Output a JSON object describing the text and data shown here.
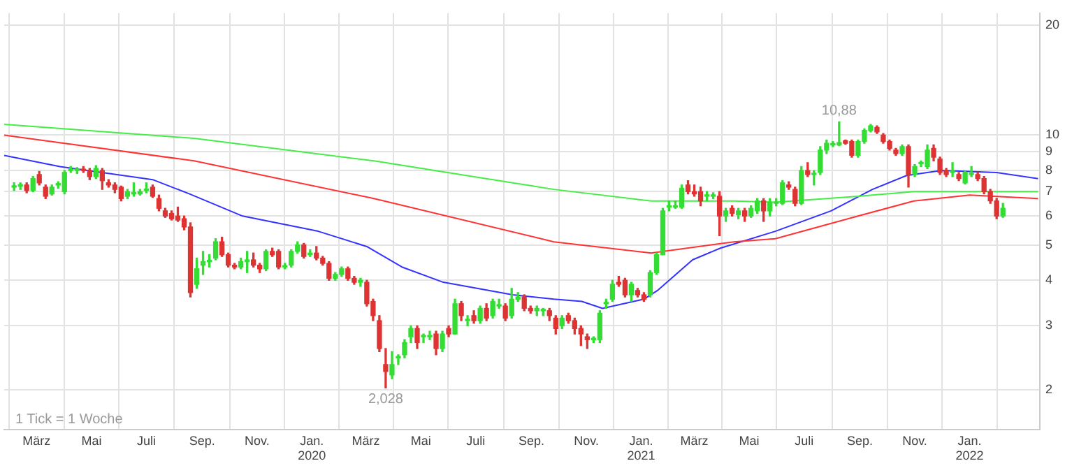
{
  "chart_data": {
    "type": "candlestick",
    "log": "y",
    "grid": true,
    "legend": false,
    "xlim": [
      "2019-01-24",
      "2022-03-20"
    ],
    "xticks": [
      {
        "value": "2019-03-01",
        "label": "März"
      },
      {
        "value": "2019-05-01",
        "label": "Mai"
      },
      {
        "value": "2019-07-01",
        "label": "Juli"
      },
      {
        "value": "2019-09-01",
        "label": "Sep."
      },
      {
        "value": "2019-11-01",
        "label": "Nov."
      },
      {
        "value": "2020-01-01",
        "label": "Jan.\n2020"
      },
      {
        "value": "2020-03-01",
        "label": "März"
      },
      {
        "value": "2020-05-01",
        "label": "Mai"
      },
      {
        "value": "2020-07-01",
        "label": "Juli"
      },
      {
        "value": "2020-09-01",
        "label": "Sep."
      },
      {
        "value": "2020-11-01",
        "label": "Nov."
      },
      {
        "value": "2021-01-01",
        "label": "Jan.\n2021"
      },
      {
        "value": "2021-03-01",
        "label": "März"
      },
      {
        "value": "2021-05-01",
        "label": "Mai"
      },
      {
        "value": "2021-07-01",
        "label": "Juli"
      },
      {
        "value": "2021-09-01",
        "label": "Sep."
      },
      {
        "value": "2021-11-01",
        "label": "Nov."
      },
      {
        "value": "2022-01-01",
        "label": "Jan.\n2022"
      }
    ],
    "ylim": [
      1.56,
      21.6
    ],
    "yticks": [
      2,
      3,
      4,
      5,
      6,
      7,
      8,
      9,
      10,
      20
    ],
    "colors": [
      "#33dd33",
      "#33dd33",
      "#dd3333",
      "#33dd33",
      "#dd3333",
      "#dd3333",
      "#33dd33",
      "#33dd33",
      "#33dd33",
      "#33dd33",
      "#33dd33",
      "#dd3333",
      "#dd3333",
      "#33dd33",
      "#dd3333",
      "#dd3333",
      "#dd3333",
      "#dd3333",
      "#33dd33",
      "#33dd33",
      "#33dd33",
      "#33dd33",
      "#dd3333",
      "#dd3333",
      "#dd3333",
      "#dd3333",
      "#dd3333",
      "#dd3333",
      "#dd3333",
      "#33dd33",
      "#33dd33",
      "#33dd33",
      "#33dd33",
      "#dd3333",
      "#dd3333",
      "#dd3333",
      "#33dd33",
      "#33dd33",
      "#dd3333",
      "#dd3333",
      "#33dd33",
      "#dd3333",
      "#dd3333",
      "#33dd33",
      "#33dd33",
      "#33dd33",
      "#dd3333",
      "#33dd33",
      "#dd3333",
      "#dd3333",
      "#dd3333",
      "#33dd33",
      "#33dd33",
      "#dd3333",
      "#dd3333",
      "#33dd33",
      "#dd3333",
      "#dd3333",
      "#dd3333",
      "#dd3333",
      "#33dd33",
      "#33dd33",
      "#33dd33",
      "#33dd33",
      "#dd3333",
      "#33dd33",
      "#33dd33",
      "#dd3333",
      "#33dd33",
      "#dd3333",
      "#33dd33",
      "#dd3333",
      "#33dd33",
      "#dd3333",
      "#33dd33",
      "#dd3333",
      "#33dd33",
      "#33dd33",
      "#dd3333",
      "#33dd33",
      "#33dd33",
      "#dd3333",
      "#dd3333",
      "#33dd33",
      "#33dd33",
      "#dd3333",
      "#dd3333",
      "#33dd33",
      "#dd3333",
      "#dd3333",
      "#dd3333",
      "#dd3333",
      "#33dd33",
      "#33dd33",
      "#33dd33",
      "#33dd33",
      "#dd3333",
      "#dd3333",
      "#33dd33",
      "#dd3333",
      "#dd3333",
      "#33dd33",
      "#33dd33",
      "#33dd33",
      "#33dd33",
      "#33dd33",
      "#33dd33",
      "#dd3333",
      "#dd3333",
      "#dd3333",
      "#33dd33",
      "#33dd33",
      "#dd3333",
      "#33dd33",
      "#dd3333",
      "#33dd33",
      "#dd3333",
      "#33dd33",
      "#33dd33",
      "#dd3333",
      "#33dd33",
      "#33dd33",
      "#33dd33",
      "#dd3333",
      "#dd3333",
      "#33dd33",
      "#dd3333",
      "#33dd33",
      "#33dd33",
      "#33dd33",
      "#33dd33",
      "#33dd33",
      "#dd3333",
      "#dd3333",
      "#33dd33",
      "#33dd33",
      "#33dd33",
      "#dd3333",
      "#dd3333",
      "#dd3333",
      "#dd3333",
      "#33dd33",
      "#dd3333",
      "#33dd33",
      "#33dd33",
      "#33dd33",
      "#dd3333",
      "#dd3333",
      "#dd3333",
      "#33dd33",
      "#dd3333",
      "#33dd33",
      "#33dd33",
      "#dd3333",
      "#dd3333",
      "#dd3333",
      "#dd3333",
      "#33dd33"
    ],
    "x": [
      "2019-02-04",
      "2019-02-11",
      "2019-02-18",
      "2019-02-25",
      "2019-03-04",
      "2019-03-11",
      "2019-03-18",
      "2019-03-25",
      "2019-04-01",
      "2019-04-08",
      "2019-04-15",
      "2019-04-22",
      "2019-04-29",
      "2019-05-06",
      "2019-05-13",
      "2019-05-20",
      "2019-05-27",
      "2019-06-03",
      "2019-06-10",
      "2019-06-17",
      "2019-06-24",
      "2019-07-01",
      "2019-07-08",
      "2019-07-15",
      "2019-07-22",
      "2019-07-29",
      "2019-08-05",
      "2019-08-12",
      "2019-08-19",
      "2019-08-26",
      "2019-09-02",
      "2019-09-09",
      "2019-09-16",
      "2019-09-23",
      "2019-09-30",
      "2019-10-07",
      "2019-10-14",
      "2019-10-21",
      "2019-10-28",
      "2019-11-04",
      "2019-11-11",
      "2019-11-18",
      "2019-11-25",
      "2019-12-02",
      "2019-12-09",
      "2019-12-16",
      "2019-12-23",
      "2019-12-30",
      "2020-01-06",
      "2020-01-13",
      "2020-01-20",
      "2020-01-27",
      "2020-02-03",
      "2020-02-10",
      "2020-02-17",
      "2020-02-24",
      "2020-03-02",
      "2020-03-09",
      "2020-03-16",
      "2020-03-23",
      "2020-03-30",
      "2020-04-06",
      "2020-04-13",
      "2020-04-20",
      "2020-04-27",
      "2020-05-04",
      "2020-05-11",
      "2020-05-18",
      "2020-05-25",
      "2020-06-01",
      "2020-06-08",
      "2020-06-15",
      "2020-06-22",
      "2020-06-29",
      "2020-07-06",
      "2020-07-13",
      "2020-07-20",
      "2020-07-27",
      "2020-08-03",
      "2020-08-10",
      "2020-08-17",
      "2020-08-24",
      "2020-08-31",
      "2020-09-07",
      "2020-09-14",
      "2020-09-21",
      "2020-09-28",
      "2020-10-05",
      "2020-10-12",
      "2020-10-19",
      "2020-10-26",
      "2020-11-02",
      "2020-11-09",
      "2020-11-16",
      "2020-11-23",
      "2020-11-30",
      "2020-12-07",
      "2020-12-14",
      "2020-12-21",
      "2020-12-28",
      "2021-01-04",
      "2021-01-11",
      "2021-01-18",
      "2021-01-25",
      "2021-02-01",
      "2021-02-08",
      "2021-02-15",
      "2021-02-22",
      "2021-03-01",
      "2021-03-08",
      "2021-03-15",
      "2021-03-22",
      "2021-03-29",
      "2021-04-05",
      "2021-04-12",
      "2021-04-19",
      "2021-04-26",
      "2021-05-03",
      "2021-05-10",
      "2021-05-17",
      "2021-05-24",
      "2021-05-31",
      "2021-06-07",
      "2021-06-14",
      "2021-06-21",
      "2021-06-28",
      "2021-07-05",
      "2021-07-12",
      "2021-07-19",
      "2021-07-26",
      "2021-08-02",
      "2021-08-09",
      "2021-08-16",
      "2021-08-23",
      "2021-08-30",
      "2021-09-06",
      "2021-09-13",
      "2021-09-20",
      "2021-09-27",
      "2021-10-04",
      "2021-10-11",
      "2021-10-18",
      "2021-10-25",
      "2021-11-01",
      "2021-11-08",
      "2021-11-15",
      "2021-11-22",
      "2021-11-29",
      "2021-12-06",
      "2021-12-13",
      "2021-12-20",
      "2021-12-27",
      "2022-01-03",
      "2022-01-10",
      "2022-01-17",
      "2022-01-24",
      "2022-01-31",
      "2022-02-07"
    ],
    "ohlc": [
      [
        7.2,
        7.4,
        7.05,
        7.25
      ],
      [
        7.25,
        7.4,
        7.1,
        7.3
      ],
      [
        7.3,
        7.4,
        6.95,
        7.05
      ],
      [
        7.05,
        7.7,
        7.0,
        7.6
      ],
      [
        7.8,
        7.95,
        7.3,
        7.4
      ],
      [
        7.2,
        7.3,
        6.7,
        6.8
      ],
      [
        6.9,
        7.3,
        6.85,
        7.2
      ],
      [
        7.3,
        7.45,
        7.15,
        7.3
      ],
      [
        7.0,
        8.0,
        6.9,
        7.9
      ],
      [
        8.0,
        8.2,
        7.9,
        8.0
      ],
      [
        8.0,
        8.15,
        7.85,
        8.05
      ],
      [
        8.05,
        8.2,
        7.9,
        8.0
      ],
      [
        8.0,
        8.1,
        7.55,
        7.7
      ],
      [
        7.7,
        8.25,
        7.6,
        8.1
      ],
      [
        8.0,
        8.1,
        7.1,
        7.5
      ],
      [
        7.4,
        7.55,
        7.2,
        7.3
      ],
      [
        7.3,
        7.4,
        6.95,
        7.1
      ],
      [
        7.2,
        7.25,
        6.6,
        6.7
      ],
      [
        6.8,
        7.1,
        6.7,
        7.0
      ],
      [
        6.9,
        7.4,
        6.8,
        6.9
      ],
      [
        6.9,
        7.1,
        6.85,
        7.0
      ],
      [
        7.05,
        7.4,
        6.95,
        7.1
      ],
      [
        7.2,
        7.3,
        6.75,
        6.8
      ],
      [
        6.7,
        6.85,
        6.2,
        6.3
      ],
      [
        6.2,
        6.3,
        5.95,
        6.0
      ],
      [
        6.1,
        6.2,
        5.85,
        5.9
      ],
      [
        6.0,
        6.35,
        5.8,
        5.85
      ],
      [
        5.9,
        6.0,
        5.5,
        5.6
      ],
      [
        5.6,
        5.75,
        3.6,
        3.7
      ],
      [
        3.9,
        4.6,
        3.8,
        4.3
      ],
      [
        4.4,
        4.8,
        4.15,
        4.5
      ],
      [
        4.5,
        4.7,
        4.35,
        4.5
      ],
      [
        4.6,
        5.2,
        4.55,
        5.1
      ],
      [
        5.1,
        5.25,
        4.65,
        4.7
      ],
      [
        4.7,
        4.75,
        4.35,
        4.4
      ],
      [
        4.4,
        4.45,
        4.3,
        4.35
      ],
      [
        4.35,
        4.6,
        4.3,
        4.5
      ],
      [
        4.5,
        4.8,
        4.2,
        4.55
      ],
      [
        4.55,
        4.75,
        4.35,
        4.4
      ],
      [
        4.4,
        4.45,
        4.2,
        4.3
      ],
      [
        4.3,
        4.85,
        4.25,
        4.8
      ],
      [
        4.8,
        4.9,
        4.65,
        4.7
      ],
      [
        4.8,
        4.85,
        4.3,
        4.35
      ],
      [
        4.35,
        4.45,
        4.3,
        4.35
      ],
      [
        4.4,
        4.85,
        4.35,
        4.8
      ],
      [
        4.8,
        5.1,
        4.75,
        5.0
      ],
      [
        5.0,
        5.05,
        4.6,
        4.65
      ],
      [
        4.7,
        4.85,
        4.65,
        4.75
      ],
      [
        4.75,
        4.95,
        4.55,
        4.6
      ],
      [
        4.6,
        4.65,
        4.4,
        4.45
      ],
      [
        4.45,
        4.5,
        4.0,
        4.05
      ],
      [
        4.05,
        4.2,
        4.0,
        4.15
      ],
      [
        4.15,
        4.35,
        4.1,
        4.3
      ],
      [
        4.3,
        4.35,
        4.0,
        4.05
      ],
      [
        4.05,
        4.1,
        3.9,
        3.95
      ],
      [
        3.95,
        4.05,
        3.85,
        4.0
      ],
      [
        3.95,
        4.0,
        3.4,
        3.45
      ],
      [
        3.5,
        3.55,
        3.1,
        3.2
      ],
      [
        3.1,
        3.2,
        2.55,
        2.6
      ],
      [
        2.35,
        2.6,
        2.028,
        2.25
      ],
      [
        2.2,
        2.55,
        2.15,
        2.35
      ],
      [
        2.45,
        2.5,
        2.35,
        2.45
      ],
      [
        2.5,
        2.75,
        2.45,
        2.7
      ],
      [
        2.8,
        3.0,
        2.7,
        2.95
      ],
      [
        2.95,
        3.0,
        2.6,
        2.7
      ],
      [
        2.8,
        2.85,
        2.7,
        2.8
      ],
      [
        2.8,
        2.9,
        2.75,
        2.8
      ],
      [
        2.85,
        2.9,
        2.5,
        2.6
      ],
      [
        2.6,
        2.9,
        2.55,
        2.85
      ],
      [
        2.95,
        3.0,
        2.8,
        2.85
      ],
      [
        2.85,
        3.55,
        2.85,
        3.45
      ],
      [
        3.45,
        3.5,
        3.1,
        3.2
      ],
      [
        3.1,
        3.2,
        3.0,
        3.1
      ],
      [
        3.2,
        3.3,
        3.05,
        3.1
      ],
      [
        3.1,
        3.4,
        3.05,
        3.35
      ],
      [
        3.35,
        3.45,
        3.1,
        3.15
      ],
      [
        3.2,
        3.55,
        3.15,
        3.5
      ],
      [
        3.4,
        3.55,
        3.35,
        3.4
      ],
      [
        3.4,
        3.45,
        3.1,
        3.15
      ],
      [
        3.2,
        3.8,
        3.15,
        3.55
      ],
      [
        3.55,
        3.7,
        3.5,
        3.6
      ],
      [
        3.6,
        3.65,
        3.3,
        3.35
      ],
      [
        3.35,
        3.4,
        3.25,
        3.3
      ],
      [
        3.3,
        3.4,
        3.2,
        3.35
      ],
      [
        3.3,
        3.35,
        3.2,
        3.3
      ],
      [
        3.3,
        3.35,
        3.1,
        3.2
      ],
      [
        3.15,
        3.2,
        2.85,
        2.95
      ],
      [
        3.0,
        3.2,
        2.95,
        3.15
      ],
      [
        3.2,
        3.25,
        3.05,
        3.1
      ],
      [
        3.1,
        3.15,
        2.85,
        2.95
      ],
      [
        2.95,
        3.0,
        2.65,
        2.85
      ],
      [
        2.8,
        2.85,
        2.6,
        2.75
      ],
      [
        2.75,
        2.8,
        2.7,
        2.75
      ],
      [
        2.75,
        3.3,
        2.7,
        3.25
      ],
      [
        3.45,
        3.55,
        3.35,
        3.45
      ],
      [
        3.55,
        4.0,
        3.5,
        3.9
      ],
      [
        3.95,
        4.1,
        3.85,
        3.9
      ],
      [
        4.0,
        4.05,
        3.6,
        3.65
      ],
      [
        3.65,
        3.95,
        3.5,
        3.9
      ],
      [
        3.75,
        3.8,
        3.6,
        3.65
      ],
      [
        3.65,
        3.7,
        3.5,
        3.55
      ],
      [
        3.65,
        4.25,
        3.6,
        4.2
      ],
      [
        4.2,
        4.75,
        4.15,
        4.7
      ],
      [
        4.7,
        6.3,
        4.7,
        6.2
      ],
      [
        6.35,
        6.6,
        6.2,
        6.35
      ],
      [
        6.35,
        6.6,
        6.3,
        6.4
      ],
      [
        6.35,
        7.3,
        6.3,
        7.15
      ],
      [
        7.3,
        7.5,
        6.9,
        7.0
      ],
      [
        7.0,
        7.3,
        6.8,
        6.9
      ],
      [
        7.0,
        7.2,
        6.4,
        6.6
      ],
      [
        6.8,
        7.0,
        6.6,
        6.8
      ],
      [
        6.8,
        6.95,
        6.7,
        6.8
      ],
      [
        6.8,
        7.0,
        5.3,
        6.0
      ],
      [
        6.0,
        6.3,
        5.8,
        6.2
      ],
      [
        6.3,
        6.4,
        6.0,
        6.1
      ],
      [
        6.05,
        6.3,
        5.9,
        6.2
      ],
      [
        6.2,
        6.3,
        5.8,
        6.0
      ],
      [
        6.0,
        6.4,
        5.95,
        6.3
      ],
      [
        6.2,
        6.7,
        6.1,
        6.6
      ],
      [
        6.6,
        6.7,
        5.8,
        6.2
      ],
      [
        6.2,
        6.7,
        6.0,
        6.55
      ],
      [
        6.5,
        6.7,
        6.4,
        6.5
      ],
      [
        6.5,
        7.5,
        6.45,
        7.4
      ],
      [
        7.3,
        7.45,
        7.1,
        7.2
      ],
      [
        7.1,
        7.2,
        6.4,
        6.5
      ],
      [
        6.5,
        8.2,
        6.45,
        8.0
      ],
      [
        8.0,
        8.4,
        7.7,
        7.8
      ],
      [
        7.8,
        8.0,
        7.3,
        7.8
      ],
      [
        7.9,
        9.3,
        7.8,
        9.1
      ],
      [
        9.1,
        9.7,
        8.9,
        9.5
      ],
      [
        9.4,
        9.6,
        9.3,
        9.4
      ],
      [
        9.4,
        10.88,
        9.35,
        9.55
      ],
      [
        9.65,
        9.7,
        9.45,
        9.5
      ],
      [
        9.6,
        9.7,
        8.7,
        8.8
      ],
      [
        8.8,
        9.7,
        8.7,
        9.6
      ],
      [
        9.6,
        10.4,
        9.5,
        10.3
      ],
      [
        10.3,
        10.7,
        10.2,
        10.6
      ],
      [
        10.5,
        10.6,
        10.1,
        10.2
      ],
      [
        10.0,
        10.1,
        9.5,
        9.6
      ],
      [
        9.6,
        9.7,
        9.1,
        9.2
      ],
      [
        9.1,
        9.2,
        8.8,
        8.9
      ],
      [
        8.9,
        9.4,
        8.8,
        9.3
      ],
      [
        9.3,
        9.4,
        7.2,
        7.8
      ],
      [
        7.8,
        8.3,
        7.7,
        8.2
      ],
      [
        8.35,
        8.5,
        8.2,
        8.4
      ],
      [
        8.2,
        9.4,
        8.1,
        9.1
      ],
      [
        9.2,
        9.4,
        8.5,
        8.7
      ],
      [
        8.6,
        8.7,
        7.8,
        7.9
      ],
      [
        8.0,
        8.1,
        7.7,
        7.8
      ],
      [
        7.9,
        8.4,
        7.7,
        7.9
      ],
      [
        7.8,
        7.9,
        7.5,
        7.6
      ],
      [
        7.4,
        7.95,
        7.35,
        7.9
      ],
      [
        7.8,
        8.2,
        7.7,
        7.8
      ],
      [
        7.8,
        7.9,
        7.5,
        7.6
      ],
      [
        7.6,
        7.7,
        6.9,
        7.0
      ],
      [
        7.0,
        7.1,
        6.5,
        6.6
      ],
      [
        6.6,
        6.7,
        5.9,
        6.0
      ],
      [
        6.0,
        6.5,
        5.95,
        6.3
      ]
    ],
    "series": [
      {
        "type": "line",
        "color": "#44ee44",
        "x": [
          "2019-01-24",
          "2019-08-23",
          "2020-03-10",
          "2020-09-26",
          "2021-01-12",
          "2021-04-14",
          "2021-05-30",
          "2021-08-30",
          "2021-10-31",
          "2022-03-18"
        ],
        "values": [
          10.7,
          9.8,
          8.5,
          7.1,
          6.6,
          6.6,
          6.55,
          6.8,
          7.0,
          7.0
        ]
      },
      {
        "type": "line",
        "color": "#ff3333",
        "x": [
          "2019-01-24",
          "2019-08-23",
          "2020-03-10",
          "2020-09-26",
          "2021-01-12",
          "2021-04-14",
          "2021-05-30",
          "2021-08-30",
          "2021-10-31",
          "2022-01-01",
          "2022-03-18"
        ],
        "values": [
          10.0,
          8.5,
          6.7,
          5.1,
          4.75,
          5.1,
          5.2,
          6.0,
          6.6,
          6.85,
          6.7
        ]
      },
      {
        "type": "line",
        "color": "#3333ff",
        "x": [
          "2019-01-24",
          "2019-03-27",
          "2019-07-08",
          "2019-08-18",
          "2019-10-16",
          "2020-01-08",
          "2020-03-02",
          "2020-04-10",
          "2020-05-26",
          "2020-08-11",
          "2020-09-26",
          "2020-10-27",
          "2020-11-19",
          "2021-01-04",
          "2021-01-19",
          "2021-02-27",
          "2021-03-30",
          "2021-05-30",
          "2021-07-31",
          "2021-09-15",
          "2021-10-23",
          "2021-12-01",
          "2022-01-31",
          "2022-03-18"
        ],
        "values": [
          8.8,
          8.2,
          7.55,
          6.9,
          6.0,
          5.45,
          4.95,
          4.35,
          3.95,
          3.65,
          3.55,
          3.5,
          3.35,
          3.55,
          3.75,
          4.55,
          4.9,
          5.45,
          6.2,
          7.1,
          7.75,
          8.0,
          7.9,
          7.6
        ]
      }
    ],
    "annotations": [
      "1 Tick = 1 Woche",
      {
        "text": "2,028",
        "x": "2020-03-23",
        "y": 2.028
      },
      {
        "text": "10,88",
        "x": "2021-08-09",
        "y": 10.88
      }
    ]
  }
}
